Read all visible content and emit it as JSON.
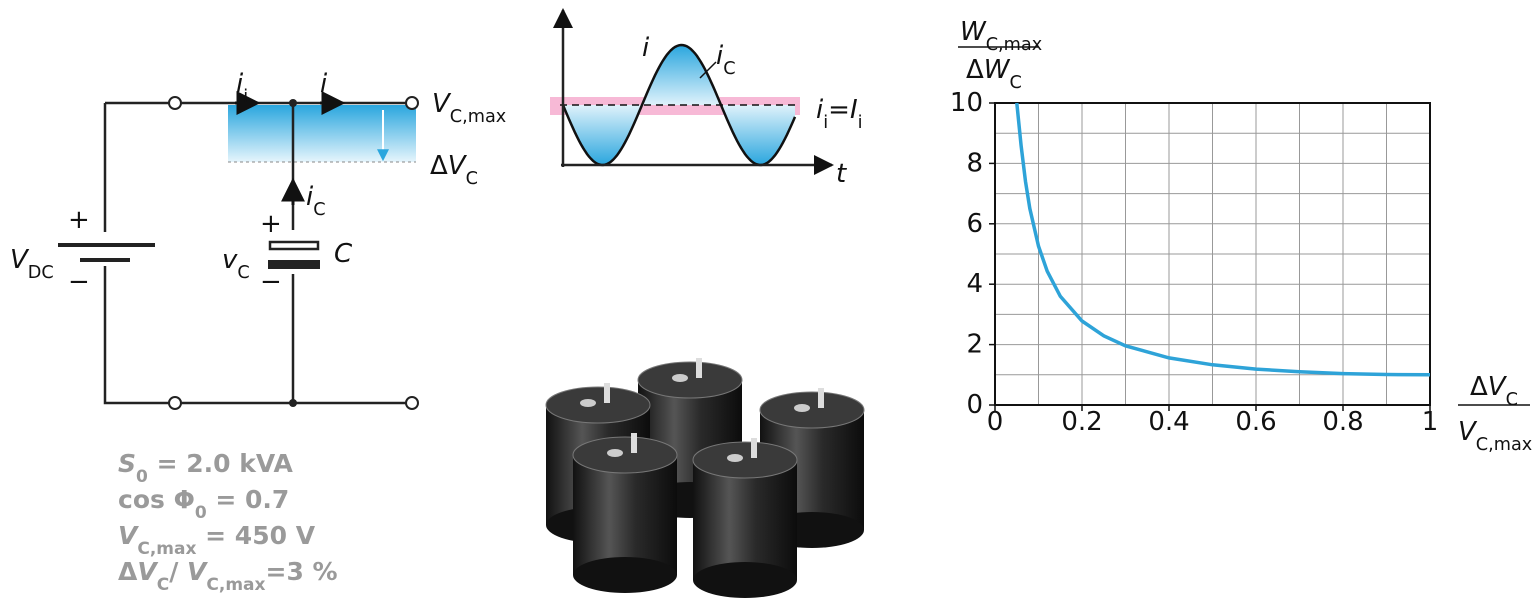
{
  "circuit": {
    "source": [
      {
        "v": "V"
      },
      {
        "s": "DC"
      }
    ],
    "plus": "+",
    "minus": "−",
    "input_current": [
      {
        "v": "i"
      },
      {
        "s": "i"
      }
    ],
    "output_current": [
      {
        "v": "i"
      }
    ],
    "capacitor_current": [
      {
        "v": "i"
      },
      {
        "s": "C"
      }
    ],
    "capacitor_voltage": [
      {
        "v": "v"
      },
      {
        "s": "C"
      }
    ],
    "capacitor": [
      {
        "v": "C"
      }
    ],
    "max_voltage": [
      {
        "v": "V"
      },
      {
        "s": "C,max"
      }
    ],
    "voltage_ripple": [
      {
        "t": "Δ"
      },
      {
        "v": "V"
      },
      {
        "s": "C"
      }
    ]
  },
  "waveform": {
    "current": [
      {
        "v": "i"
      }
    ],
    "capacitor_current": [
      {
        "v": "i"
      },
      {
        "s": "C"
      }
    ],
    "mean_current": [
      {
        "v": "i"
      },
      {
        "s": "i"
      },
      {
        "t": "="
      },
      {
        "v": "I"
      },
      {
        "s": "i"
      }
    ],
    "time": [
      {
        "v": "t"
      }
    ]
  },
  "specs": [
    [
      {
        "v": "S"
      },
      {
        "s": "0"
      },
      {
        "t": " = 2.0 kVA"
      }
    ],
    [
      {
        "t": "cos Φ"
      },
      {
        "s": "0"
      },
      {
        "t": " = 0.7"
      }
    ],
    [
      {
        "v": "V"
      },
      {
        "s": "C,max"
      },
      {
        "t": " = 450 V"
      }
    ],
    [
      {
        "t": "Δ"
      },
      {
        "v": "V"
      },
      {
        "s": "C"
      },
      {
        "t": "/ "
      },
      {
        "v": "V"
      },
      {
        "s": "C,max"
      },
      {
        "t": "=3 %"
      }
    ]
  ],
  "chart_data": {
    "type": "line",
    "ylabel": {
      "numerator": [
        {
          "v": "W"
        },
        {
          "s": "C,max"
        }
      ],
      "denominator": [
        {
          "t": "Δ"
        },
        {
          "v": "W"
        },
        {
          "s": "C"
        }
      ]
    },
    "xlabel": {
      "numerator": [
        {
          "t": "Δ"
        },
        {
          "v": "V"
        },
        {
          "s": "C"
        }
      ],
      "denominator": [
        {
          "v": "V"
        },
        {
          "s": "C,max"
        }
      ]
    },
    "x": [
      0.05,
      0.06,
      0.07,
      0.08,
      0.1,
      0.12,
      0.15,
      0.2,
      0.25,
      0.3,
      0.4,
      0.5,
      0.6,
      0.7,
      0.8,
      0.9,
      1
    ],
    "values": [
      10.0,
      8.59,
      7.4,
      6.51,
      5.26,
      4.43,
      3.6,
      2.78,
      2.29,
      1.96,
      1.56,
      1.33,
      1.19,
      1.1,
      1.04,
      1.01,
      1.0
    ],
    "color": "#2ea3d8",
    "xlim": [
      0,
      1
    ],
    "ylim": [
      0,
      10
    ],
    "xticks": [
      0,
      0.2,
      0.4,
      0.6,
      0.8,
      1
    ],
    "yticks": [
      0,
      2,
      4,
      6,
      8,
      10
    ],
    "grid": true
  }
}
